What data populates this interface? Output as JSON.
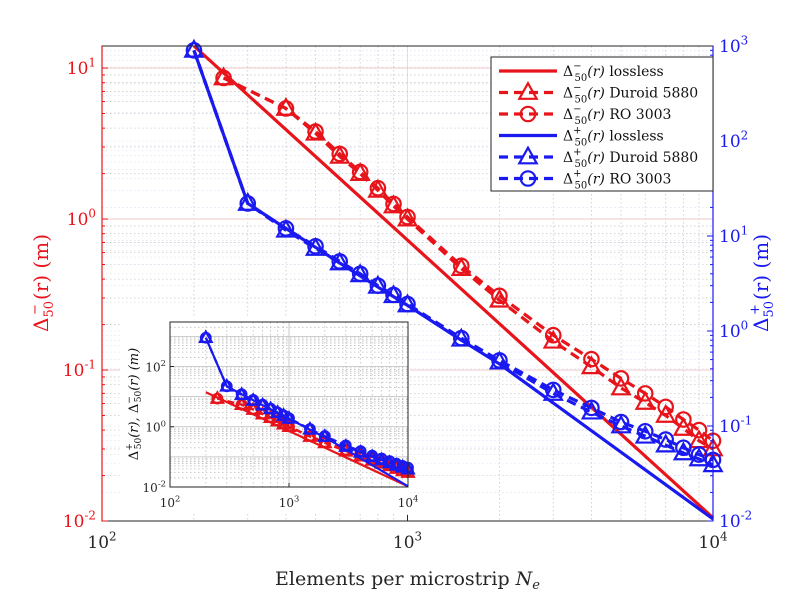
{
  "chart_data": {
    "type": "line",
    "x_scale": "log",
    "xlabel": "Elements per microstrip N_e",
    "xlim": [
      100,
      10000
    ],
    "x_ticks": [
      {
        "value": 100,
        "base": "10",
        "exp": "2"
      },
      {
        "value": 1000,
        "base": "10",
        "exp": "3"
      },
      {
        "value": 10000,
        "base": "10",
        "exp": "4"
      }
    ],
    "left_axis": {
      "label_main": "Δ",
      "label_sub": "50",
      "label_sup": "−",
      "label_rest": "(r) (m)",
      "lim": [
        0.01,
        14
      ],
      "color": "#e8141b",
      "ticks": [
        {
          "value": 10,
          "base": "10",
          "exp": "1"
        },
        {
          "value": 1,
          "base": "10",
          "exp": "0"
        },
        {
          "value": 0.1,
          "base": "10",
          "exp": "-1"
        },
        {
          "value": 0.01,
          "base": "10",
          "exp": "-2"
        }
      ]
    },
    "right_axis": {
      "label_main": "Δ",
      "label_sub": "50",
      "label_sup": "+",
      "label_rest": "(r) (m)",
      "lim": [
        0.01,
        1000
      ],
      "color": "#1a1af0",
      "ticks": [
        {
          "value": 1000,
          "base": "10",
          "exp": "3"
        },
        {
          "value": 100,
          "base": "10",
          "exp": "2"
        },
        {
          "value": 10,
          "base": "10",
          "exp": "1"
        },
        {
          "value": 1,
          "base": "10",
          "exp": "0"
        },
        {
          "value": 0.1,
          "base": "10",
          "exp": "-1"
        },
        {
          "value": 0.01,
          "base": "10",
          "exp": "-2"
        }
      ]
    },
    "series": [
      {
        "name": "lossless",
        "sign": "−",
        "axis": "left",
        "color": "#e8141b",
        "dash": false,
        "marker": "none",
        "x": [
          200,
          10000
        ],
        "y": [
          14,
          0.0105
        ]
      },
      {
        "name": "Duroid 5880",
        "sign": "−",
        "axis": "left",
        "color": "#e8141b",
        "dash": true,
        "marker": "triangle",
        "x": [
          250,
          400,
          500,
          600,
          700,
          800,
          900,
          1000,
          1500,
          2000,
          3000,
          4000,
          5000,
          6000,
          7000,
          8000,
          9000,
          10000
        ],
        "y": [
          8.6,
          5.4,
          3.7,
          2.6,
          2.0,
          1.55,
          1.22,
          1.0,
          0.47,
          0.29,
          0.155,
          0.105,
          0.076,
          0.061,
          0.05,
          0.041,
          0.034,
          0.03
        ]
      },
      {
        "name": "RO 3003",
        "sign": "−",
        "axis": "left",
        "color": "#e8141b",
        "dash": true,
        "marker": "circle",
        "x": [
          250,
          400,
          500,
          600,
          700,
          800,
          900,
          1000,
          1500,
          2000,
          3000,
          4000,
          5000,
          6000,
          7000,
          8000,
          9000,
          10000
        ],
        "y": [
          8.6,
          5.4,
          3.8,
          2.7,
          2.05,
          1.6,
          1.26,
          1.03,
          0.49,
          0.31,
          0.17,
          0.118,
          0.088,
          0.07,
          0.057,
          0.047,
          0.04,
          0.034
        ]
      },
      {
        "name": "lossless",
        "sign": "+",
        "axis": "right",
        "color": "#1a1af0",
        "dash": false,
        "marker": "none",
        "x": [
          200,
          300,
          400,
          500,
          600,
          700,
          800,
          900,
          1000,
          1500,
          2000,
          10000
        ],
        "y": [
          900,
          22,
          12,
          7.6,
          5.2,
          3.8,
          2.9,
          2.3,
          1.86,
          0.8,
          0.45,
          0.0105
        ]
      },
      {
        "name": "Duroid 5880",
        "sign": "+",
        "axis": "right",
        "color": "#1a1af0",
        "dash": true,
        "marker": "triangle",
        "x": [
          200,
          300,
          400,
          500,
          600,
          700,
          800,
          900,
          1000,
          1500,
          2000,
          3000,
          4000,
          5000,
          6000,
          7000,
          8000,
          9000,
          10000
        ],
        "y": [
          900,
          22,
          11.5,
          7.4,
          5.2,
          3.9,
          2.95,
          2.35,
          1.88,
          0.82,
          0.47,
          0.22,
          0.14,
          0.1,
          0.078,
          0.063,
          0.052,
          0.045,
          0.039
        ]
      },
      {
        "name": "RO 3003",
        "sign": "+",
        "axis": "right",
        "color": "#1a1af0",
        "dash": true,
        "marker": "circle",
        "x": [
          200,
          300,
          400,
          500,
          600,
          700,
          800,
          900,
          1000,
          1500,
          2000,
          3000,
          4000,
          5000,
          6000,
          7000,
          8000,
          9000,
          10000
        ],
        "y": [
          900,
          22,
          12,
          7.8,
          5.4,
          4.0,
          3.0,
          2.4,
          1.92,
          0.84,
          0.49,
          0.24,
          0.155,
          0.11,
          0.088,
          0.072,
          0.059,
          0.05,
          0.044
        ]
      }
    ],
    "legend": {
      "placement": "top-right",
      "entries": [
        {
          "sign": "−",
          "text": "lossless"
        },
        {
          "sign": "−",
          "text": "Duroid 5880"
        },
        {
          "sign": "−",
          "text": "RO 3003"
        },
        {
          "sign": "+",
          "text": "lossless"
        },
        {
          "sign": "+",
          "text": "Duroid 5880"
        },
        {
          "sign": "+",
          "text": "RO 3003"
        }
      ]
    },
    "inset": {
      "placement": "bottom-left",
      "ylabel_pre": "Δ",
      "ylabel_mid": "(r), ",
      "ylabel_post": "(r) (m)",
      "xlim": [
        100,
        10000
      ],
      "ylim": [
        0.01,
        3000
      ],
      "x_ticks": [
        {
          "value": 100,
          "base": "10",
          "exp": "2"
        },
        {
          "value": 1000,
          "base": "10",
          "exp": "3"
        },
        {
          "value": 10000,
          "base": "10",
          "exp": "4"
        }
      ],
      "y_ticks": [
        {
          "value": 100,
          "base": "10",
          "exp": "2"
        },
        {
          "value": 1,
          "base": "10",
          "exp": "0"
        },
        {
          "value": 0.01,
          "base": "10",
          "exp": "-2"
        }
      ]
    }
  }
}
